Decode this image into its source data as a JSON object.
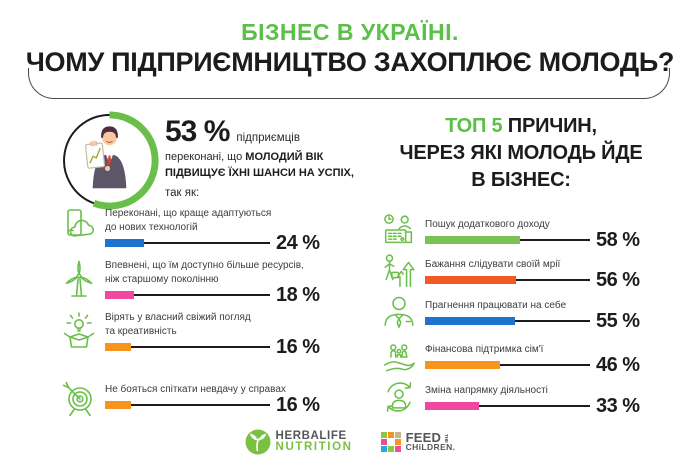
{
  "title": {
    "line1": "БІЗНЕС В УКРАЇНІ.",
    "line2": "ЧОМУ ПІДПРИЄМНИЦТВО ЗАХОПЛЮЄ МОЛОДЬ?"
  },
  "colors": {
    "accent_green": "#5bbf48",
    "icon_green": "#6abf4b",
    "text_dark": "#1c1c1c"
  },
  "left_section": {
    "stat_value": "53 %",
    "stat_suffix": "підприємців",
    "stat_line2_normal": "переконані, що ",
    "stat_line2_bold": "МОЛОДИЙ ВІК",
    "stat_line3_bold": "ПІДВИЩУЄ ЇХНІ ШАНСИ НА УСПІХ,",
    "stat_line4": "так як:",
    "items": [
      {
        "icon": "phone-cloud-icon",
        "label": "Переконані, що краще адаптуються\nдо нових технологій",
        "value": 24,
        "display": "24 %",
        "color": "#1e73cf"
      },
      {
        "icon": "wind-turbine-icon",
        "label": "Впевнені, що їм доступно більше ресурсів,\nніж старшому поколінню",
        "value": 18,
        "display": "18 %",
        "color": "#f2479f"
      },
      {
        "icon": "idea-box-icon",
        "label": "Вірять у власний свіжий погляд\nта креативність",
        "value": 16,
        "display": "16 %",
        "color": "#f7941e"
      },
      {
        "icon": "target-icon",
        "label": "Не бояться спіткати невдачу у справах",
        "value": 16,
        "display": "16 %",
        "color": "#f7941e"
      }
    ]
  },
  "right_section": {
    "title_accent": "ТОП 5",
    "title_rest": " ПРИЧИН,",
    "title_line2": "ЧЕРЕЗ ЯКІ МОЛОДЬ ЙДЕ",
    "title_line3": "В БІЗНЕС:",
    "items": [
      {
        "icon": "extra-income-icon",
        "label": "Пошук додаткового доходу",
        "value": 58,
        "display": "58 %",
        "color": "#7cc153"
      },
      {
        "icon": "follow-dream-icon",
        "label": "Бажання слідувати своїй мрії",
        "value": 56,
        "display": "56 %",
        "color": "#f15a24"
      },
      {
        "icon": "work-for-self-icon",
        "label": "Прагнення працювати на себе",
        "value": 55,
        "display": "55 %",
        "color": "#1e73cf"
      },
      {
        "icon": "family-support-icon",
        "label": "Фінансова підтримка сім'ї",
        "value": 46,
        "display": "46 %",
        "color": "#f7941e"
      },
      {
        "icon": "change-direction-icon",
        "label": "Зміна напрямку діяльності",
        "value": 33,
        "display": "33 %",
        "color": "#f2479f"
      }
    ]
  },
  "footer": {
    "herbalife": {
      "line1": "HERBALIFE",
      "line2": "NUTRITION",
      "text_color": "#55565a",
      "green": "#7ac143"
    },
    "feed_the_children": {
      "word1": "FEED",
      "word2": "THE",
      "word3": "CHiLDREN.",
      "text_color": "#55565a",
      "block_colors": [
        "#8dc63f",
        "#f7941d",
        "#c9b48f",
        "#ef4e91",
        "#ffffff",
        "#f7941d",
        "#27aae1",
        "#8dc63f",
        "#ef4e91"
      ]
    }
  },
  "chart_data": [
    {
      "type": "bar",
      "title": "53 % підприємців переконані, що молодий вік підвищує їхні шанси на успіх, так як:",
      "stat_percent": 53,
      "categories": [
        "Переконані, що краще адаптуються до нових технологій",
        "Впевнені, що їм доступно більше ресурсів, ніж старшому поколінню",
        "Вірять у власний свіжий погляд та креативність",
        "Не бояться спіткати невдачу у справах"
      ],
      "values": [
        24,
        18,
        16,
        16
      ],
      "unit": "%",
      "xlabel": "",
      "ylabel": "",
      "xlim": [
        0,
        100
      ],
      "grid": false,
      "legend": false
    },
    {
      "type": "bar",
      "title": "ТОП 5 причин, через які молодь йде в бізнес:",
      "categories": [
        "Пошук додаткового доходу",
        "Бажання слідувати своїй мрії",
        "Прагнення працювати на себе",
        "Фінансова підтримка сім'ї",
        "Зміна напрямку діяльності"
      ],
      "values": [
        58,
        56,
        55,
        46,
        33
      ],
      "unit": "%",
      "xlabel": "",
      "ylabel": "",
      "xlim": [
        0,
        100
      ],
      "grid": false,
      "legend": false
    }
  ]
}
